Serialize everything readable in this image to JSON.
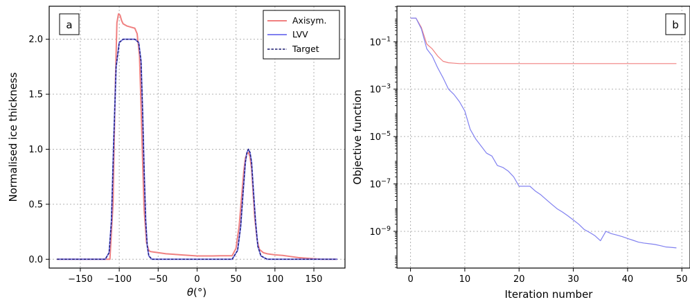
{
  "chart_data": [
    {
      "type": "line",
      "panel_label": "a",
      "xlabel_symbol": "θ",
      "xlabel_unit": " (°)",
      "ylabel": "Normalised ice thickness",
      "xlim": [
        -190,
        190
      ],
      "ylim": [
        -0.08,
        2.3
      ],
      "xticks": [
        -150,
        -100,
        -50,
        0,
        50,
        100,
        150
      ],
      "yticks": [
        0.0,
        0.5,
        1.0,
        1.5,
        2.0
      ],
      "xtick_labels": [
        "−150",
        "−100",
        "−50",
        "0",
        "50",
        "100",
        "150"
      ],
      "ytick_labels": [
        "0.0",
        "0.5",
        "1.0",
        "1.5",
        "2.0"
      ],
      "grid": true,
      "legend_position": "top-right",
      "series": [
        {
          "name": "Axisym.",
          "color": "#f08080",
          "style": "solid",
          "x": [
            -180,
            -112,
            -108,
            -105,
            -103,
            -101,
            -99,
            -97,
            -95,
            -90,
            -85,
            -80,
            -77,
            -74,
            -72,
            -70,
            -68,
            -65,
            -62,
            -60,
            -55,
            -50,
            -40,
            -30,
            -20,
            -10,
            0,
            10,
            20,
            30,
            40,
            45,
            50,
            54,
            57,
            60,
            62,
            64,
            66,
            68,
            70,
            72,
            74,
            77,
            80,
            85,
            90,
            100,
            110,
            120,
            130,
            140,
            150,
            160,
            180
          ],
          "y": [
            0,
            0,
            0.5,
            1.6,
            2.15,
            2.23,
            2.22,
            2.17,
            2.14,
            2.12,
            2.11,
            2.1,
            2.05,
            1.85,
            1.4,
            0.9,
            0.45,
            0.15,
            0.08,
            0.07,
            0.065,
            0.06,
            0.05,
            0.045,
            0.04,
            0.035,
            0.03,
            0.03,
            0.03,
            0.032,
            0.032,
            0.032,
            0.1,
            0.3,
            0.55,
            0.8,
            0.92,
            0.96,
            0.97,
            0.93,
            0.82,
            0.6,
            0.38,
            0.18,
            0.09,
            0.06,
            0.05,
            0.04,
            0.035,
            0.025,
            0.015,
            0.01,
            0.005,
            0,
            0
          ]
        },
        {
          "name": "LVV",
          "color": "#8080f0",
          "style": "solid",
          "x": [
            -180,
            -118,
            -113,
            -110,
            -107,
            -104,
            -100,
            -95,
            -90,
            -85,
            -80,
            -75,
            -72,
            -70,
            -68,
            -66,
            -64,
            -62,
            -58,
            -50,
            0,
            45,
            52,
            56,
            59,
            62,
            64,
            66,
            68,
            70,
            72,
            75,
            78,
            82,
            90,
            180
          ],
          "y": [
            0,
            0,
            0.06,
            0.35,
            1.1,
            1.75,
            1.97,
            2.0,
            2.0,
            2.0,
            2.0,
            1.97,
            1.8,
            1.35,
            0.8,
            0.35,
            0.12,
            0.03,
            0,
            0,
            0,
            0,
            0.08,
            0.3,
            0.6,
            0.88,
            0.97,
            1.0,
            0.97,
            0.88,
            0.66,
            0.35,
            0.12,
            0.03,
            0,
            0
          ]
        },
        {
          "name": "Target",
          "color": "#1a1a6e",
          "style": "dashed",
          "x": [
            -180,
            -118,
            -113,
            -110,
            -107,
            -104,
            -100,
            -95,
            -90,
            -85,
            -80,
            -75,
            -72,
            -70,
            -68,
            -66,
            -64,
            -62,
            -58,
            -50,
            0,
            45,
            52,
            56,
            59,
            62,
            64,
            66,
            68,
            70,
            72,
            75,
            78,
            82,
            90,
            180
          ],
          "y": [
            0,
            0,
            0.06,
            0.35,
            1.1,
            1.75,
            1.97,
            2.0,
            2.0,
            2.0,
            2.0,
            1.97,
            1.8,
            1.35,
            0.8,
            0.35,
            0.12,
            0.03,
            0,
            0,
            0,
            0,
            0.08,
            0.3,
            0.6,
            0.88,
            0.97,
            1.0,
            0.97,
            0.88,
            0.66,
            0.35,
            0.12,
            0.03,
            0,
            0
          ]
        }
      ]
    },
    {
      "type": "line",
      "panel_label": "b",
      "xlabel": "Iteration number",
      "ylabel": "Objective function",
      "yscale": "log",
      "xlim": [
        -2.5,
        51.5
      ],
      "ylim_log10": [
        -10.55,
        0.5
      ],
      "xticks": [
        0,
        10,
        20,
        30,
        40,
        50
      ],
      "xtick_labels": [
        "0",
        "10",
        "20",
        "30",
        "40",
        "50"
      ],
      "yticks_exp": [
        -1,
        -3,
        -5,
        -7,
        -9
      ],
      "ytick_base": "10",
      "grid": true,
      "legend": false,
      "series": [
        {
          "color": "#f08080",
          "x": [
            0,
            1,
            2,
            3,
            4,
            5,
            6,
            7,
            8,
            9,
            10,
            15,
            20,
            25,
            30,
            35,
            40,
            45,
            49
          ],
          "y": [
            1.0,
            1.0,
            0.4,
            0.08,
            0.05,
            0.025,
            0.015,
            0.013,
            0.0125,
            0.012,
            0.012,
            0.012,
            0.012,
            0.012,
            0.012,
            0.012,
            0.012,
            0.012,
            0.012
          ]
        },
        {
          "color": "#8080f0",
          "x": [
            0,
            1,
            2,
            3,
            4,
            5,
            6,
            7,
            8,
            9,
            10,
            11,
            12,
            13,
            14,
            15,
            16,
            17,
            18,
            19,
            20,
            21,
            22,
            23,
            24,
            25,
            26,
            27,
            28,
            29,
            30,
            31,
            32,
            33,
            34,
            35,
            36,
            37,
            38,
            39,
            40,
            41,
            42,
            43,
            44,
            45,
            46,
            47,
            48,
            49
          ],
          "y": [
            1.0,
            1.0,
            0.35,
            0.05,
            0.025,
            0.008,
            0.003,
            0.001,
            0.0006,
            0.0003,
            0.00012,
            2e-05,
            8e-06,
            4e-06,
            2e-06,
            1.5e-06,
            6e-07,
            5e-07,
            3.5e-07,
            2e-07,
            8e-08,
            8e-08,
            8e-08,
            5e-08,
            3.5e-08,
            2.2e-08,
            1.4e-08,
            9e-09,
            6.5e-09,
            4.5e-09,
            3e-09,
            2e-09,
            1.2e-09,
            9e-10,
            6.5e-10,
            4e-10,
            1e-09,
            8e-10,
            7e-10,
            6e-10,
            5e-10,
            4.2e-10,
            3.5e-10,
            3.2e-10,
            3e-10,
            2.8e-10,
            2.5e-10,
            2.2e-10,
            2.1e-10,
            2e-10
          ]
        }
      ]
    }
  ]
}
